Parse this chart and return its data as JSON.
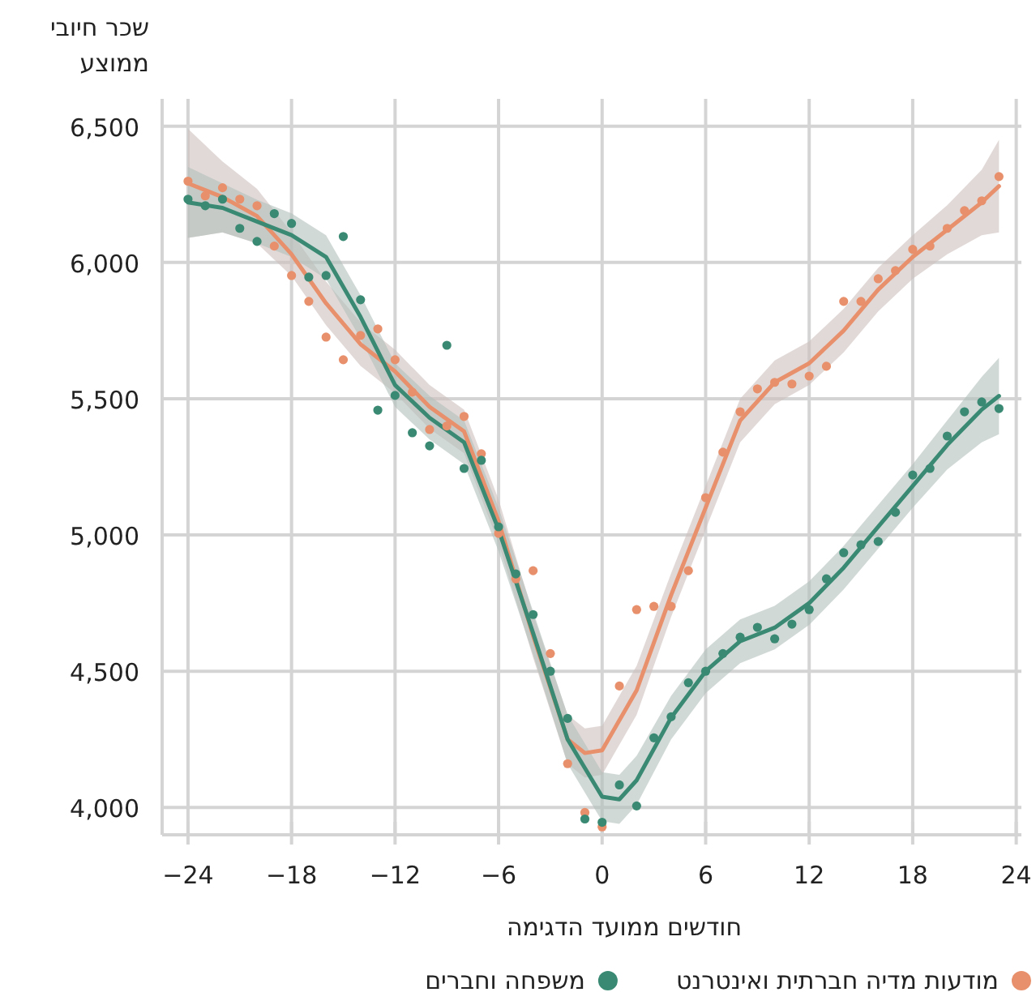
{
  "chart_data": {
    "type": "scatter",
    "xlabel": "חודשים ממועד הדגימה",
    "ylabel": "שכר חיובי ממוצע",
    "xlim": [
      -25.5,
      24.3
    ],
    "ylim": [
      3900,
      6600
    ],
    "xticks": [
      {
        "value": -24,
        "label": "−24"
      },
      {
        "value": -18,
        "label": "−18"
      },
      {
        "value": -12,
        "label": "−12"
      },
      {
        "value": -6,
        "label": "−6"
      },
      0,
      6,
      12,
      18,
      24
    ],
    "yticks": [
      {
        "value": 4000,
        "label": "4,000"
      },
      {
        "value": 4500,
        "label": "4,500"
      },
      {
        "value": 5000,
        "label": "5,000"
      },
      {
        "value": 5500,
        "label": "5,500"
      },
      {
        "value": 6000,
        "label": "6,000"
      },
      {
        "value": 6500,
        "label": "6,500"
      }
    ],
    "grid": true,
    "legend": "bottom",
    "series": [
      {
        "type": "line",
        "color": "#e8906b",
        "x": [
          -24,
          -22,
          -20,
          -18,
          -16,
          -14,
          -12,
          -10,
          -8,
          -6,
          -4,
          -2,
          -1,
          0,
          2,
          4,
          6,
          8,
          10,
          12,
          14,
          16,
          18,
          20,
          22,
          23
        ],
        "values": [
          6290,
          6240,
          6170,
          6030,
          5850,
          5700,
          5600,
          5470,
          5380,
          5050,
          4630,
          4250,
          4200,
          4210,
          4430,
          4780,
          5100,
          5420,
          5560,
          5630,
          5750,
          5900,
          6020,
          6120,
          6220,
          6280
        ],
        "lower": [
          6090,
          6110,
          6070,
          5950,
          5770,
          5620,
          5520,
          5390,
          5300,
          4970,
          4550,
          4160,
          4110,
          4120,
          4340,
          4700,
          5020,
          5340,
          5480,
          5550,
          5670,
          5820,
          5940,
          6030,
          6100,
          6110
        ],
        "upper": [
          6490,
          6370,
          6270,
          6110,
          5930,
          5780,
          5680,
          5550,
          5460,
          5130,
          4710,
          4340,
          4290,
          4300,
          4520,
          4860,
          5180,
          5500,
          5640,
          5710,
          5830,
          5980,
          6100,
          6210,
          6340,
          6450
        ]
      },
      {
        "type": "line",
        "color": "#3a8a73",
        "x": [
          -24,
          -22,
          -20,
          -18,
          -16,
          -14,
          -12,
          -10,
          -8,
          -6,
          -4,
          -2,
          0,
          1,
          2,
          4,
          6,
          8,
          10,
          12,
          14,
          16,
          18,
          20,
          22,
          23
        ],
        "values": [
          6220,
          6200,
          6150,
          6100,
          6020,
          5800,
          5550,
          5430,
          5340,
          5020,
          4640,
          4250,
          4040,
          4030,
          4100,
          4330,
          4500,
          4610,
          4660,
          4750,
          4880,
          5030,
          5180,
          5330,
          5460,
          5510
        ],
        "lower": [
          6090,
          6110,
          6070,
          6020,
          5940,
          5720,
          5470,
          5350,
          5260,
          4940,
          4560,
          4160,
          3950,
          3940,
          4010,
          4250,
          4420,
          4530,
          4580,
          4670,
          4800,
          4950,
          5100,
          5240,
          5340,
          5370
        ],
        "upper": [
          6350,
          6290,
          6230,
          6180,
          6100,
          5880,
          5630,
          5510,
          5420,
          5100,
          4720,
          4340,
          4130,
          4120,
          4190,
          4410,
          4580,
          4690,
          4740,
          4830,
          4960,
          5110,
          5260,
          5420,
          5580,
          5650
        ]
      },
      {
        "type": "scatter",
        "name": "מודעות מדיה חברתית ואינטרנט",
        "color": "#e8906b",
        "x": [
          -24,
          -23,
          -22,
          -21,
          -20,
          -19,
          -18,
          -17,
          -16,
          -15,
          -14,
          -13,
          -12,
          -11,
          -10,
          -9,
          -8,
          -7,
          -6,
          -5,
          -4,
          -3,
          -2,
          -1,
          0,
          1,
          2,
          3,
          4,
          5,
          6,
          7,
          8,
          9,
          10,
          11,
          12,
          13,
          14,
          15,
          16,
          17,
          18,
          19,
          20,
          21,
          22,
          23
        ],
        "values": [
          6298,
          6244,
          6274,
          6232,
          6208,
          6060,
          5952,
          5857,
          5726,
          5643,
          5732,
          5756,
          5643,
          5524,
          5387,
          5400,
          5435,
          5298,
          5006,
          4839,
          4869,
          4565,
          4161,
          3982,
          3929,
          4446,
          4726,
          4738,
          4738,
          4869,
          5137,
          5304,
          5452,
          5536,
          5560,
          5554,
          5583,
          5619,
          5857,
          5857,
          5940,
          5970,
          6048,
          6060,
          6125,
          6190,
          6226,
          6315
        ]
      },
      {
        "type": "scatter",
        "name": "משפחה וחברים",
        "color": "#3a8a73",
        "x": [
          -24,
          -23,
          -22,
          -21,
          -20,
          -19,
          -18,
          -17,
          -16,
          -15,
          -14,
          -13,
          -12,
          -11,
          -10,
          -9,
          -8,
          -7,
          -6,
          -5,
          -4,
          -3,
          -2,
          -1,
          0,
          1,
          2,
          3,
          4,
          5,
          6,
          7,
          8,
          9,
          10,
          11,
          12,
          13,
          14,
          15,
          16,
          17,
          18,
          19,
          20,
          21,
          22,
          23
        ],
        "values": [
          6232,
          6208,
          6232,
          6125,
          6077,
          6179,
          6143,
          5946,
          5952,
          6095,
          5863,
          5458,
          5512,
          5375,
          5327,
          5696,
          5244,
          5274,
          5030,
          4857,
          4708,
          4500,
          4327,
          3958,
          3946,
          4083,
          4006,
          4256,
          4333,
          4458,
          4500,
          4565,
          4625,
          4661,
          4619,
          4673,
          4726,
          4839,
          4935,
          4964,
          4976,
          5083,
          5220,
          5244,
          5363,
          5452,
          5488,
          5464
        ]
      }
    ]
  }
}
